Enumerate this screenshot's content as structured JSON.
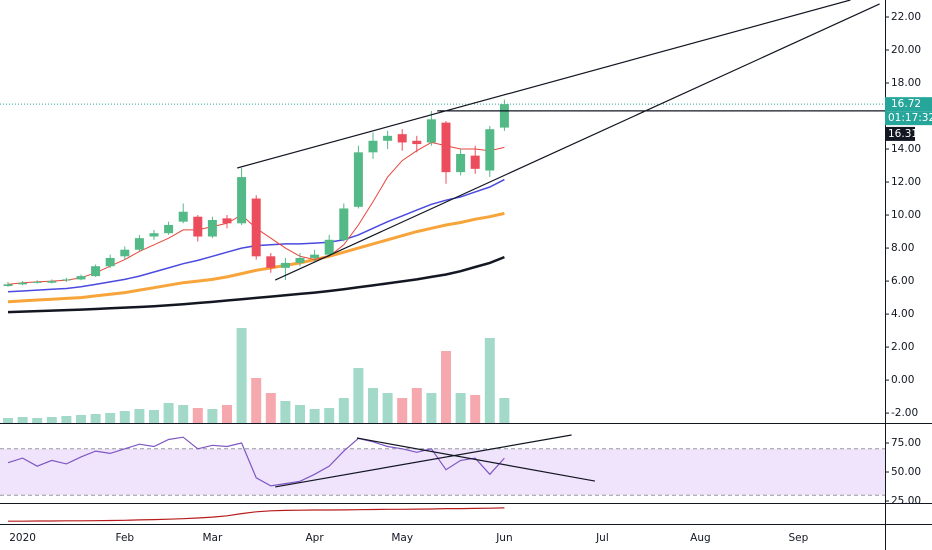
{
  "chart_data": [
    {
      "type": "candlestick",
      "categories": [
        null,
        "2020",
        null,
        null,
        null,
        null,
        null,
        null,
        "Feb",
        null,
        null,
        null,
        null,
        null,
        "Mar",
        null,
        null,
        null,
        null,
        null,
        null,
        "Apr",
        null,
        null,
        null,
        null,
        null,
        "May",
        null,
        null,
        null,
        null,
        null,
        null,
        "Jun"
      ],
      "future_months": [
        "Jul",
        "Aug",
        "Sep"
      ],
      "open": [
        5.7,
        5.8,
        5.95,
        5.9,
        6.05,
        6.1,
        6.3,
        6.9,
        7.5,
        7.9,
        8.7,
        8.9,
        9.6,
        9.9,
        8.7,
        9.8,
        9.5,
        11.0,
        7.5,
        6.8,
        7.1,
        7.4,
        7.6,
        8.5,
        10.5,
        13.8,
        14.5,
        14.9,
        14.5,
        14.4,
        15.6,
        12.6,
        13.6,
        12.7,
        15.3
      ],
      "high": [
        5.95,
        6.0,
        6.05,
        6.1,
        6.2,
        6.4,
        7.0,
        7.6,
        8.1,
        8.8,
        9.1,
        9.6,
        10.7,
        10.0,
        9.9,
        10.0,
        12.85,
        11.2,
        7.7,
        7.4,
        7.7,
        7.9,
        8.8,
        10.7,
        14.2,
        15.0,
        15.1,
        15.2,
        14.8,
        16.31,
        15.7,
        14.0,
        14.2,
        15.4,
        17.0
      ],
      "low": [
        5.65,
        5.75,
        5.85,
        5.85,
        5.95,
        6.05,
        6.25,
        6.8,
        7.3,
        7.8,
        8.5,
        8.8,
        9.5,
        8.4,
        8.6,
        9.2,
        9.4,
        7.3,
        6.5,
        6.06,
        6.9,
        7.2,
        7.5,
        8.4,
        10.4,
        13.4,
        14.0,
        13.9,
        13.8,
        14.2,
        11.9,
        12.4,
        12.5,
        12.3,
        15.1
      ],
      "close": [
        5.8,
        5.9,
        5.95,
        6.0,
        6.1,
        6.3,
        6.9,
        7.4,
        7.9,
        8.6,
        8.9,
        9.4,
        10.2,
        8.7,
        9.7,
        9.5,
        12.3,
        7.5,
        6.8,
        7.1,
        7.4,
        7.6,
        8.5,
        10.4,
        13.8,
        14.5,
        14.8,
        14.4,
        14.3,
        15.8,
        12.6,
        13.7,
        12.8,
        15.2,
        16.72
      ],
      "up_color": "#53b987",
      "down_color": "#eb4d5c",
      "series": [
        {
          "color": "#131722",
          "values": [
            4.12,
            4.15,
            4.18,
            4.21,
            4.24,
            4.27,
            4.31,
            4.35,
            4.39,
            4.43,
            4.48,
            4.53,
            4.6,
            4.67,
            4.74,
            4.82,
            4.9,
            4.98,
            5.06,
            5.14,
            5.22,
            5.3,
            5.4,
            5.5,
            5.62,
            5.74,
            5.86,
            5.98,
            6.1,
            6.25,
            6.4,
            6.6,
            6.85,
            7.1,
            7.45
          ]
        },
        {
          "color": "#f7a43a",
          "values": [
            4.75,
            4.8,
            4.85,
            4.9,
            4.95,
            5.0,
            5.1,
            5.2,
            5.3,
            5.45,
            5.6,
            5.75,
            5.9,
            6.0,
            6.1,
            6.25,
            6.45,
            6.65,
            6.8,
            6.95,
            7.1,
            7.3,
            7.5,
            7.75,
            8.0,
            8.25,
            8.5,
            8.75,
            9.0,
            9.2,
            9.4,
            9.55,
            9.75,
            9.9,
            10.1
          ]
        },
        {
          "color": "#4a4ae0",
          "values": [
            5.35,
            5.4,
            5.45,
            5.5,
            5.55,
            5.65,
            5.8,
            5.95,
            6.1,
            6.3,
            6.55,
            6.8,
            7.05,
            7.25,
            7.5,
            7.75,
            8.0,
            8.15,
            8.2,
            8.25,
            8.25,
            8.3,
            8.35,
            8.5,
            8.8,
            9.2,
            9.6,
            9.95,
            10.3,
            10.65,
            10.9,
            11.1,
            11.4,
            11.7,
            12.15
          ]
        },
        {
          "color": "#e8453c",
          "values": [
            5.8,
            5.9,
            5.95,
            6.0,
            6.05,
            6.2,
            6.5,
            6.9,
            7.3,
            7.8,
            8.2,
            8.6,
            9.1,
            9.1,
            9.3,
            9.5,
            10.0,
            9.2,
            8.6,
            8.0,
            7.5,
            7.3,
            7.5,
            8.2,
            9.4,
            10.8,
            12.3,
            13.3,
            13.9,
            14.4,
            14.2,
            14.0,
            14.0,
            13.9,
            14.1
          ]
        }
      ],
      "volume": {
        "values": [
          5,
          6,
          5,
          6,
          7,
          8,
          9,
          10,
          12,
          14,
          13,
          20,
          18,
          15,
          14,
          18,
          95,
          45,
          30,
          22,
          18,
          14,
          15,
          25,
          55,
          35,
          30,
          25,
          35,
          30,
          72,
          30,
          28,
          85,
          25
        ],
        "ylim": [
          0,
          110
        ],
        "up_color": "#a3d9c9",
        "down_color": "#f5a8ad"
      },
      "ylim": [
        -2.6,
        23.03
      ],
      "yticks": [
        {
          "value": -2,
          "label": "-2.00"
        },
        {
          "value": 0,
          "label": "0.00"
        },
        {
          "value": 2,
          "label": "2.00"
        },
        {
          "value": 4,
          "label": "4.00"
        },
        {
          "value": 6,
          "label": "6.00"
        },
        {
          "value": 8,
          "label": "8.00"
        },
        {
          "value": 10,
          "label": "10.00"
        },
        {
          "value": 12,
          "label": "12.00"
        },
        {
          "value": 14,
          "label": "14.00"
        },
        {
          "value": 18,
          "label": "18.00"
        },
        {
          "value": 20,
          "label": "20.00"
        },
        {
          "value": 22,
          "label": "22.00"
        }
      ],
      "last_price": 16.72,
      "last_price_color": "#26a69a",
      "countdown": "01:17:32",
      "level": {
        "value": 16.31,
        "from": 29.4
      },
      "trendlines": [
        {
          "from": [
            15.7,
            12.85
          ],
          "to": [
            57.7,
            23.03
          ]
        },
        {
          "from": [
            18.3,
            6.06
          ],
          "to": [
            59.7,
            22.79
          ]
        }
      ]
    },
    {
      "type": "line",
      "values": [
        58,
        62,
        55,
        60,
        57,
        63,
        68,
        66,
        70,
        74,
        72,
        78,
        80,
        70,
        73,
        72,
        75,
        45,
        38,
        40,
        42,
        48,
        55,
        68,
        79,
        76,
        72,
        70,
        67,
        70,
        52,
        60,
        62,
        48,
        62
      ],
      "color": "#7e57c2",
      "ylim": [
        23.28,
        90.52
      ],
      "yticks": [
        {
          "value": 25,
          "label": "25.00"
        },
        {
          "value": 50,
          "label": "50.00"
        },
        {
          "value": 75,
          "label": "75.00"
        }
      ],
      "band": [
        30,
        70
      ],
      "band_color": "#f0e4fc",
      "trendlines": [
        {
          "from": [
            18.3,
            37.1
          ],
          "to": [
            38.6,
            81.9
          ]
        },
        {
          "from": [
            23.9,
            79.3
          ],
          "to": [
            40.2,
            42.2
          ]
        }
      ]
    },
    {
      "type": "line",
      "values": [
        10,
        10,
        11,
        11,
        12,
        12,
        13,
        14,
        15,
        17,
        19,
        21,
        24,
        28,
        33,
        40,
        52,
        62,
        68,
        70,
        71,
        72,
        72,
        73,
        74,
        75,
        76,
        76,
        77,
        78,
        80,
        80,
        81,
        82,
        84
      ],
      "color": "#b71c1c",
      "ylim": [
        0,
        100
      ]
    }
  ]
}
